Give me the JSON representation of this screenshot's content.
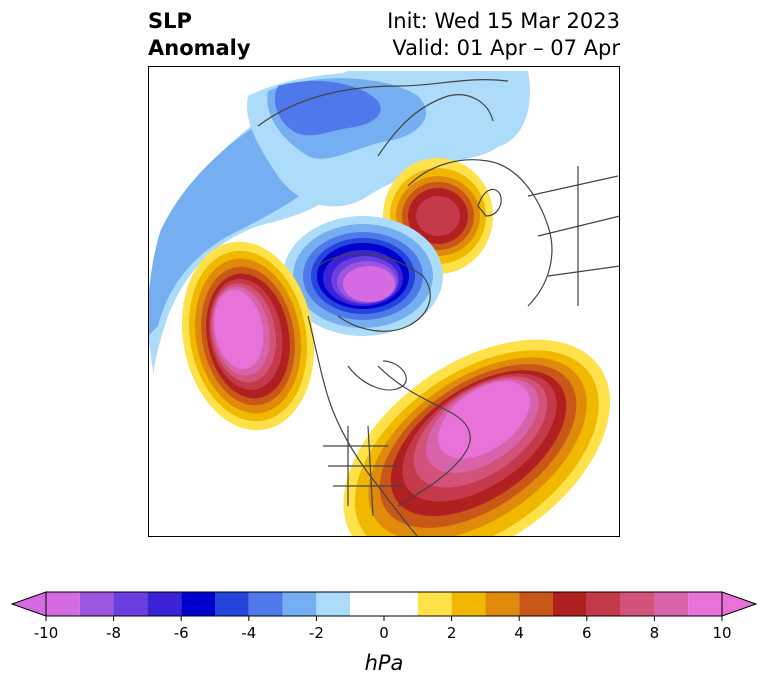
{
  "title": {
    "left_line1": "SLP",
    "left_line2": "Anomaly",
    "right_line1": "Init: Wed 15 Mar 2023",
    "right_line2": "Valid: 01 Apr – 07 Apr"
  },
  "colorbar": {
    "label": "hPa",
    "ticks": [
      "-10",
      "-8",
      "-6",
      "-4",
      "-2",
      "0",
      "2",
      "4",
      "6",
      "8",
      "10"
    ],
    "min": -10,
    "max": 10,
    "bins": [
      {
        "from": -10,
        "to": -9,
        "color": "#d46be3"
      },
      {
        "from": -9,
        "to": -8,
        "color": "#9b55e0"
      },
      {
        "from": -8,
        "to": -7,
        "color": "#6a3ee0"
      },
      {
        "from": -7,
        "to": -6,
        "color": "#3a22d6"
      },
      {
        "from": -6,
        "to": -5,
        "color": "#0000cc"
      },
      {
        "from": -5,
        "to": -4,
        "color": "#2344dd"
      },
      {
        "from": -4,
        "to": -3,
        "color": "#4f79ea"
      },
      {
        "from": -3,
        "to": -2,
        "color": "#76aef2"
      },
      {
        "from": -2,
        "to": -1,
        "color": "#addcfb"
      },
      {
        "from": -1,
        "to": 1,
        "color": "#ffffff"
      },
      {
        "from": 1,
        "to": 2,
        "color": "#ffe24a"
      },
      {
        "from": 2,
        "to": 3,
        "color": "#f1b800"
      },
      {
        "from": 3,
        "to": 4,
        "color": "#e08a0c"
      },
      {
        "from": 4,
        "to": 5,
        "color": "#c95818"
      },
      {
        "from": 5,
        "to": 6,
        "color": "#b02020"
      },
      {
        "from": 6,
        "to": 7,
        "color": "#c43a4a"
      },
      {
        "from": 7,
        "to": 8,
        "color": "#d2527a"
      },
      {
        "from": 8,
        "to": 9,
        "color": "#d963aa"
      },
      {
        "from": 9,
        "to": 10,
        "color": "#e872d8"
      }
    ],
    "under_color": "#d46be3",
    "over_color": "#e872d8"
  },
  "anomaly_features": [
    {
      "name": "deep low over Arctic / Greenland",
      "sign": "negative",
      "peak_hpa": -10
    },
    {
      "name": "low over northern Europe / Scandinavia",
      "sign": "negative",
      "peak_hpa": -4
    },
    {
      "name": "high over western Russia",
      "sign": "positive",
      "peak_hpa": 7
    },
    {
      "name": "high over northeast Pacific",
      "sign": "positive",
      "peak_hpa": 10
    },
    {
      "name": "high over eastern North America / western Atlantic",
      "sign": "positive",
      "peak_hpa": 10
    },
    {
      "name": "broad negative belt over North Atlantic / Greenland arc",
      "sign": "negative",
      "peak_hpa": -3
    }
  ]
}
